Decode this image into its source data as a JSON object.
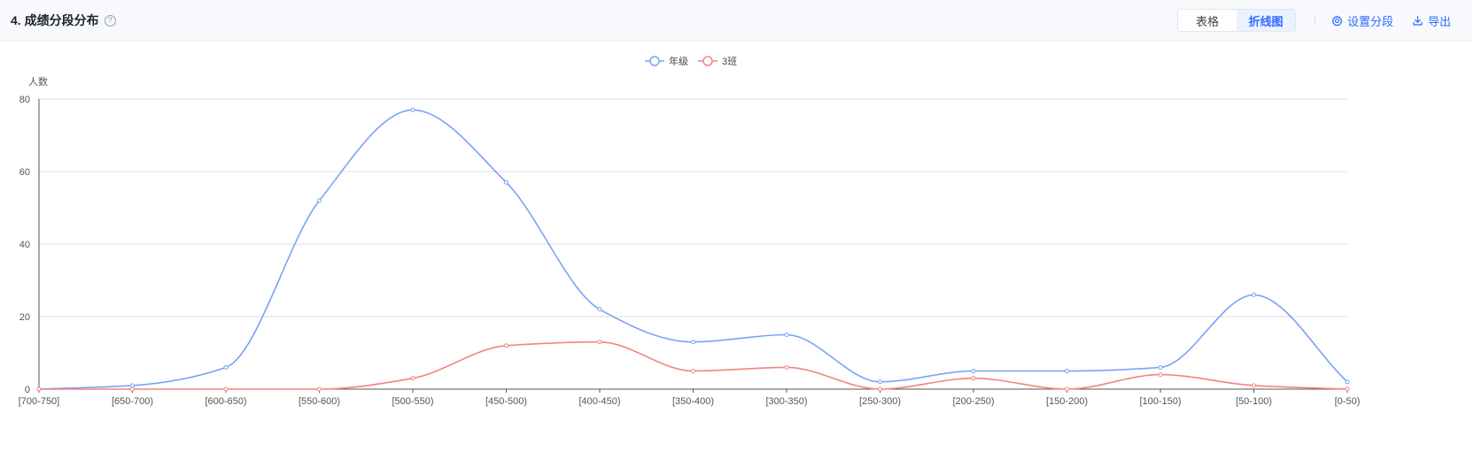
{
  "header": {
    "title": "4. 成绩分段分布",
    "help_icon": "question-circle-icon",
    "view_toggle": {
      "table_label": "表格",
      "line_label": "折线图",
      "active": "折线图"
    },
    "settings_label": "设置分段",
    "settings_icon": "gear-icon",
    "export_label": "导出",
    "export_icon": "download-icon"
  },
  "colors": {
    "accent": "#2f6bff",
    "series_grade": "#7aa2f7",
    "series_class": "#f28482"
  },
  "chart_data": {
    "type": "line",
    "title": "",
    "xlabel": "",
    "ylabel": "人数",
    "ylim": [
      0,
      80
    ],
    "yticks": [
      0,
      20,
      40,
      60,
      80
    ],
    "grid": true,
    "smooth": true,
    "legend_position": "top-center",
    "categories": [
      "[700-750]",
      "[650-700)",
      "[600-650)",
      "[550-600)",
      "[500-550)",
      "[450-500)",
      "[400-450)",
      "[350-400)",
      "[300-350)",
      "[250-300)",
      "[200-250)",
      "[150-200)",
      "[100-150)",
      "[50-100)",
      "[0-50)"
    ],
    "series": [
      {
        "name": "年级",
        "color": "#7aa2f7",
        "values": [
          0,
          1,
          6,
          52,
          77,
          57,
          22,
          13,
          15,
          2,
          5,
          5,
          6,
          26,
          2
        ]
      },
      {
        "name": "3班",
        "color": "#f28482",
        "values": [
          0,
          0,
          0,
          0,
          3,
          12,
          13,
          5,
          6,
          0,
          3,
          0,
          4,
          1,
          0
        ]
      }
    ]
  }
}
